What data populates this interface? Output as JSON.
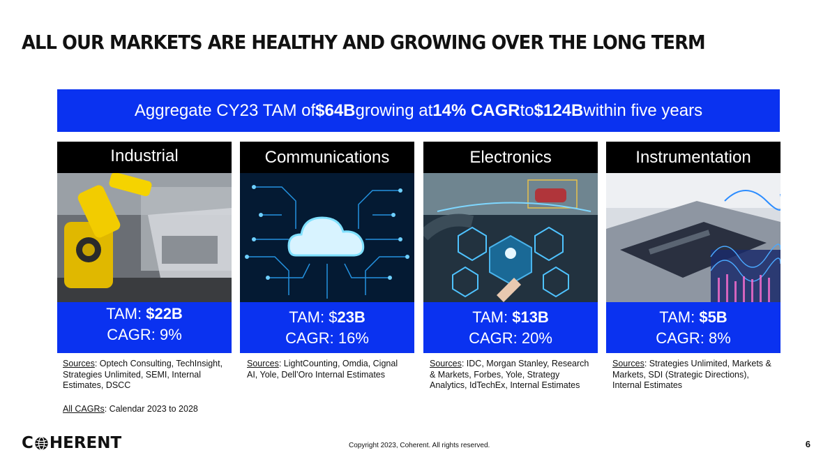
{
  "title": "ALL OUR MARKETS ARE HEALTHY AND GROWING OVER THE LONG TERM",
  "banner": {
    "pre": "Aggregate CY23 TAM of ",
    "tam": "$64B",
    "mid1": " growing at ",
    "cagr": "14% CAGR",
    "mid2": " to ",
    "future": "$124B",
    "post": " within five years"
  },
  "markets": [
    {
      "name": "Industrial",
      "tam_label": "TAM: ",
      "tam_value": "$22B",
      "cagr": "CAGR: 9%",
      "sources_label": "Sources",
      "sources_text": ": Optech Consulting, TechInsight, Strategies Unlimited, SEMI, Internal Estimates, DSCC"
    },
    {
      "name": "Communications",
      "tam_label": "TAM: $",
      "tam_value": "23B",
      "cagr": "CAGR: 16%",
      "sources_label": "Sources",
      "sources_text": ": LightCounting, Omdia, Cignal AI, Yole, Dell’Oro Internal Estimates"
    },
    {
      "name": "Electronics",
      "tam_label": "TAM: ",
      "tam_value": "$13B",
      "cagr": "CAGR: 20%",
      "sources_label": "Sources",
      "sources_text": ": IDC, Morgan Stanley, Research & Markets, Forbes, Yole, Strategy Analytics, IdTechEx, Internal Estimates"
    },
    {
      "name": "Instrumentation",
      "tam_label": "TAM: ",
      "tam_value": "$5B",
      "cagr": "CAGR: 8%",
      "sources_label": "Sources",
      "sources_text": ": Strategies Unlimited, Markets & Markets, SDI (Strategic Directions), Internal Estimates"
    }
  ],
  "cagr_note": {
    "label": "All CAGRs",
    "text": ": Calendar 2023 to 2028"
  },
  "images": {
    "industrial": "robot-arm-assembly-line",
    "communications": "cloud-circuit-board",
    "electronics": "autonomous-car-dashboard",
    "instrumentation": "laser-instrument-waves"
  },
  "footer": {
    "logo_c": "C",
    "logo_rest": "HERENT",
    "copyright": "Copyright 2023, Coherent. All rights reserved.",
    "page_number": "6"
  },
  "colors": {
    "accent_blue": "#0a32f0",
    "header_black": "#000000"
  }
}
